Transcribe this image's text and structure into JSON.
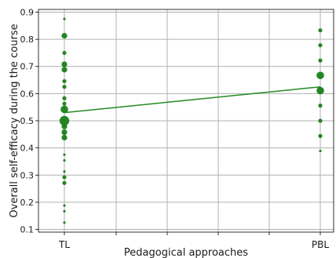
{
  "chart_data": {
    "type": "scatter",
    "title": "",
    "xlabel": "Pedagogical approaches",
    "ylabel": "Overall self-efficacy during the course",
    "categories": [
      "TL",
      "PBL"
    ],
    "ylim": [
      0.09,
      0.91
    ],
    "yticks": [
      "0.1",
      "0.2",
      "0.3",
      "0.4",
      "0.5",
      "0.6",
      "0.7",
      "0.8",
      "0.9"
    ],
    "grid": true,
    "marker_color": "#1a7f1a",
    "line_color": "#228b22",
    "series": [
      {
        "category": "TL",
        "points": [
          {
            "y": 0.875,
            "size": 1
          },
          {
            "y": 0.813,
            "size": 3
          },
          {
            "y": 0.75,
            "size": 2
          },
          {
            "y": 0.708,
            "size": 3
          },
          {
            "y": 0.688,
            "size": 3
          },
          {
            "y": 0.646,
            "size": 2
          },
          {
            "y": 0.625,
            "size": 2
          },
          {
            "y": 0.583,
            "size": 2
          },
          {
            "y": 0.563,
            "size": 2
          },
          {
            "y": 0.542,
            "size": 4
          },
          {
            "y": 0.5,
            "size": 5
          },
          {
            "y": 0.479,
            "size": 3
          },
          {
            "y": 0.458,
            "size": 3
          },
          {
            "y": 0.438,
            "size": 3
          },
          {
            "y": 0.375,
            "size": 1
          },
          {
            "y": 0.354,
            "size": 1
          },
          {
            "y": 0.313,
            "size": 1
          },
          {
            "y": 0.292,
            "size": 2
          },
          {
            "y": 0.271,
            "size": 2
          },
          {
            "y": 0.188,
            "size": 1
          },
          {
            "y": 0.167,
            "size": 1
          },
          {
            "y": 0.125,
            "size": 1
          }
        ]
      },
      {
        "category": "PBL",
        "points": [
          {
            "y": 0.833,
            "size": 2
          },
          {
            "y": 0.778,
            "size": 2
          },
          {
            "y": 0.722,
            "size": 2
          },
          {
            "y": 0.667,
            "size": 4
          },
          {
            "y": 0.611,
            "size": 4
          },
          {
            "y": 0.556,
            "size": 2
          },
          {
            "y": 0.5,
            "size": 2
          },
          {
            "y": 0.444,
            "size": 2
          },
          {
            "y": 0.389,
            "size": 1
          }
        ]
      }
    ],
    "trend_line": {
      "TL": 0.53,
      "PBL": 0.625
    }
  }
}
